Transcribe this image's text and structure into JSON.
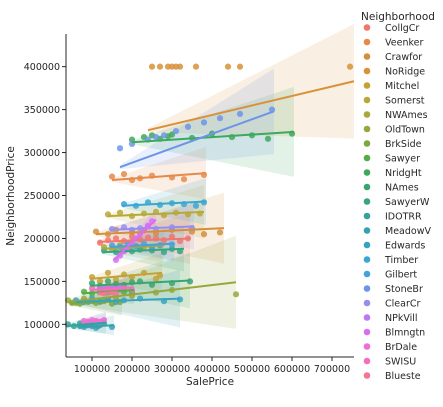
{
  "chart_data": {
    "type": "scatter",
    "xlabel": "SalePrice",
    "ylabel": "NeighborhoodPrice",
    "xlim": [
      35000,
      755000
    ],
    "ylim": [
      62000,
      438000
    ],
    "x_ticks": [
      100000,
      200000,
      300000,
      400000,
      500000,
      600000,
      700000
    ],
    "x_tick_labels": [
      "100000",
      "200000",
      "300000",
      "400000",
      "500000",
      "600000",
      "700000"
    ],
    "y_ticks": [
      100000,
      150000,
      200000,
      250000,
      300000,
      350000,
      400000
    ],
    "y_tick_labels": [
      "100000",
      "150000",
      "200000",
      "250000",
      "300000",
      "350000",
      "400000"
    ],
    "legend_title": "Neighborhood",
    "legend_position": "right",
    "series": [
      {
        "name": "CollgCr",
        "color": "#f0766e",
        "x": [
          120000,
          140000,
          160000,
          180000,
          200000,
          220000,
          240000,
          260000,
          280000,
          300000,
          320000,
          340000
        ],
        "y": [
          195000,
          198000,
          200000,
          197000,
          202000,
          199000,
          201000,
          200000,
          198000,
          202000,
          197000,
          200000
        ],
        "fit": [
          [
            115000,
            196000
          ],
          [
            345000,
            200000
          ]
        ]
      },
      {
        "name": "Veenker",
        "color": "#e58a4a",
        "x": [
          150000,
          180000,
          200000,
          220000,
          250000,
          300000,
          330000,
          380000
        ],
        "y": [
          272000,
          275000,
          268000,
          270000,
          273000,
          271000,
          269000,
          274000
        ],
        "fit": [
          [
            150000,
            268000
          ],
          [
            385000,
            276000
          ]
        ]
      },
      {
        "name": "Crawfor",
        "color": "#d48f3c",
        "x": [
          110000,
          140000,
          160000,
          200000,
          230000,
          260000,
          300000,
          350000,
          380000,
          420000
        ],
        "y": [
          208000,
          205000,
          210000,
          207000,
          209000,
          206000,
          210000,
          208000,
          205000,
          207000
        ],
        "fit": [
          [
            110000,
            205000
          ],
          [
            430000,
            212000
          ]
        ]
      },
      {
        "name": "NoRidge",
        "color": "#d9913a",
        "x": [
          250000,
          270000,
          290000,
          300000,
          310000,
          320000,
          360000,
          440000,
          470000,
          745000
        ],
        "y": [
          400000,
          400000,
          400000,
          400000,
          400000,
          400000,
          400000,
          400000,
          400000,
          400000
        ],
        "fit": [
          [
            240000,
            326000
          ],
          [
            755000,
            383000
          ]
        ]
      },
      {
        "name": "Mitchel",
        "color": "#c4a135",
        "x": [
          100000,
          120000,
          140000,
          160000,
          180000,
          200000,
          230000,
          260000,
          270000
        ],
        "y": [
          155000,
          150000,
          160000,
          152000,
          158000,
          155000,
          160000,
          153000,
          157000
        ],
        "fit": [
          [
            95000,
            153000
          ],
          [
            275000,
            160000
          ]
        ]
      },
      {
        "name": "Somerst",
        "color": "#b8a837",
        "x": [
          140000,
          170000,
          200000,
          230000,
          260000,
          280000,
          310000,
          340000,
          370000
        ],
        "y": [
          228000,
          230000,
          226000,
          229000,
          231000,
          227000,
          230000,
          228000,
          229000
        ],
        "fit": [
          [
            140000,
            226000
          ],
          [
            380000,
            231000
          ]
        ]
      },
      {
        "name": "NWAmes",
        "color": "#a9a83b",
        "x": [
          130000,
          150000,
          170000,
          190000,
          210000,
          230000,
          250000,
          270000
        ],
        "y": [
          190000,
          188000,
          192000,
          189000,
          191000,
          190000,
          188000,
          192000
        ],
        "fit": [
          [
            125000,
            188000
          ],
          [
            280000,
            192000
          ]
        ]
      },
      {
        "name": "OldTown",
        "color": "#96a83c",
        "x": [
          40000,
          60000,
          80000,
          100000,
          120000,
          140000,
          160000,
          200000,
          260000,
          300000,
          460000
        ],
        "y": [
          128000,
          125000,
          130000,
          127000,
          126000,
          129000,
          131000,
          133000,
          137000,
          140000,
          135000
        ],
        "fit": [
          [
            40000,
            126000
          ],
          [
            460000,
            149000
          ]
        ]
      },
      {
        "name": "BrkSide",
        "color": "#7da83d",
        "x": [
          50000,
          70000,
          90000,
          110000,
          130000,
          150000,
          170000
        ],
        "y": [
          125000,
          124000,
          126000,
          125000,
          127000,
          124000,
          126000
        ],
        "fit": [
          [
            45000,
            124000
          ],
          [
            175000,
            127000
          ]
        ]
      },
      {
        "name": "Sawyer",
        "color": "#52ad47",
        "x": [
          80000,
          100000,
          120000,
          140000,
          160000,
          180000,
          200000
        ],
        "y": [
          138000,
          136000,
          139000,
          137000,
          140000,
          138000,
          137000
        ],
        "fit": [
          [
            75000,
            136000
          ],
          [
            205000,
            140000
          ]
        ]
      },
      {
        "name": "NridgHt",
        "color": "#3ea85c",
        "x": [
          200000,
          230000,
          250000,
          270000,
          290000,
          300000,
          350000,
          400000,
          450000,
          500000,
          540000,
          600000
        ],
        "y": [
          315000,
          318000,
          320000,
          316000,
          319000,
          321000,
          317000,
          322000,
          318000,
          320000,
          316000,
          322000
        ],
        "fit": [
          [
            200000,
            312000
          ],
          [
            605000,
            324000
          ]
        ]
      },
      {
        "name": "NAmes",
        "color": "#3aa56e",
        "x": [
          100000,
          120000,
          140000,
          160000,
          180000,
          200000,
          220000,
          250000,
          300000,
          345000
        ],
        "y": [
          148000,
          145000,
          150000,
          147000,
          146000,
          149000,
          150000,
          146000,
          148000,
          150000
        ],
        "fit": [
          [
            95000,
            145000
          ],
          [
            345000,
            151000
          ]
        ]
      },
      {
        "name": "SawyerW",
        "color": "#37a484",
        "x": [
          130000,
          160000,
          180000,
          200000,
          220000,
          250000,
          280000,
          300000,
          320000
        ],
        "y": [
          186000,
          184000,
          188000,
          185000,
          187000,
          186000,
          184000,
          188000,
          185000
        ],
        "fit": [
          [
            125000,
            184000
          ],
          [
            330000,
            188000
          ]
        ]
      },
      {
        "name": "IDOTRR",
        "color": "#35a39a",
        "x": [
          40000,
          55000,
          70000,
          85000,
          100000,
          115000,
          130000
        ],
        "y": [
          100000,
          98000,
          101000,
          99000,
          100000,
          98000,
          101000
        ],
        "fit": [
          [
            35000,
            98000
          ],
          [
            135000,
            102000
          ]
        ]
      },
      {
        "name": "MeadowV",
        "color": "#36a1b0",
        "x": [
          70000,
          80000,
          90000,
          100000,
          110000,
          120000,
          150000
        ],
        "y": [
          98000,
          97000,
          99000,
          98000,
          96000,
          99000,
          97000
        ],
        "fit": [
          [
            65000,
            97000
          ],
          [
            155000,
            99000
          ]
        ]
      },
      {
        "name": "Edwards",
        "color": "#38a3c1",
        "x": [
          60000,
          80000,
          100000,
          120000,
          140000,
          160000,
          180000,
          220000,
          280000,
          320000
        ],
        "y": [
          128000,
          126000,
          130000,
          127000,
          129000,
          126000,
          128000,
          130000,
          127000,
          129000
        ],
        "fit": [
          [
            60000,
            126000
          ],
          [
            320000,
            130000
          ]
        ]
      },
      {
        "name": "Timber",
        "color": "#3aa6d2",
        "x": [
          180000,
          210000,
          240000,
          270000,
          300000,
          330000,
          360000,
          380000
        ],
        "y": [
          240000,
          238000,
          242000,
          239000,
          241000,
          240000,
          238000,
          242000
        ],
        "fit": [
          [
            175000,
            238000
          ],
          [
            385000,
            243000
          ]
        ]
      },
      {
        "name": "Gilbert",
        "color": "#45a1dc",
        "x": [
          150000,
          170000,
          190000,
          210000,
          230000,
          250000,
          270000,
          300000
        ],
        "y": [
          192000,
          190000,
          193000,
          191000,
          194000,
          190000,
          192000,
          193000
        ],
        "fit": [
          [
            145000,
            190000
          ],
          [
            305000,
            194000
          ]
        ]
      },
      {
        "name": "StoneBr",
        "color": "#6c95e8",
        "x": [
          170000,
          200000,
          240000,
          260000,
          280000,
          310000,
          340000,
          380000,
          420000,
          470000,
          550000
        ],
        "y": [
          305000,
          310000,
          315000,
          318000,
          320000,
          325000,
          330000,
          335000,
          340000,
          345000,
          350000
        ],
        "fit": [
          [
            170000,
            283000
          ],
          [
            555000,
            348000
          ]
        ]
      },
      {
        "name": "ClearCr",
        "color": "#978df0",
        "x": [
          150000,
          180000,
          200000,
          220000,
          240000,
          260000,
          300000,
          350000
        ],
        "y": [
          211000,
          213000,
          210000,
          212000,
          214000,
          211000,
          213000,
          212000
        ],
        "fit": [
          [
            145000,
            210000
          ],
          [
            355000,
            214000
          ]
        ]
      },
      {
        "name": "NPkVill",
        "color": "#bb78f2",
        "x": [
          120000,
          130000,
          140000,
          150000,
          160000,
          170000
        ],
        "y": [
          142000,
          141000,
          143000,
          142000,
          141000,
          143000
        ],
        "fit": [
          [
            115000,
            141000
          ],
          [
            175000,
            143000
          ]
        ]
      },
      {
        "name": "Blmngtn",
        "color": "#d96ff0",
        "x": [
          160000,
          170000,
          180000,
          190000,
          200000,
          210000,
          220000,
          230000,
          240000,
          250000
        ],
        "y": [
          175000,
          180000,
          185000,
          190000,
          195000,
          200000,
          205000,
          210000,
          215000,
          220000
        ],
        "fit": [
          [
            155000,
            175000
          ],
          [
            260000,
            222000
          ]
        ]
      },
      {
        "name": "BrDale",
        "color": "#ec6fd5",
        "x": [
          80000,
          90000,
          100000,
          110000,
          120000,
          130000
        ],
        "y": [
          104000,
          103000,
          105000,
          104000,
          103000,
          105000
        ],
        "fit": [
          [
            75000,
            103000
          ],
          [
            135000,
            105000
          ]
        ]
      },
      {
        "name": "SWISU",
        "color": "#f36fbd",
        "x": [
          100000,
          120000,
          140000,
          160000,
          180000,
          200000
        ],
        "y": [
          142000,
          140000,
          143000,
          141000,
          142000,
          140000
        ],
        "fit": [
          [
            95000,
            140000
          ],
          [
            205000,
            143000
          ]
        ]
      },
      {
        "name": "Blueste",
        "color": "#f47493",
        "x": [
          120000,
          130000,
          140000,
          150000,
          160000
        ],
        "y": [
          137000,
          136000,
          138000,
          137000,
          136000
        ],
        "fit": [
          [
            115000,
            136000
          ],
          [
            165000,
            138000
          ]
        ]
      }
    ]
  }
}
